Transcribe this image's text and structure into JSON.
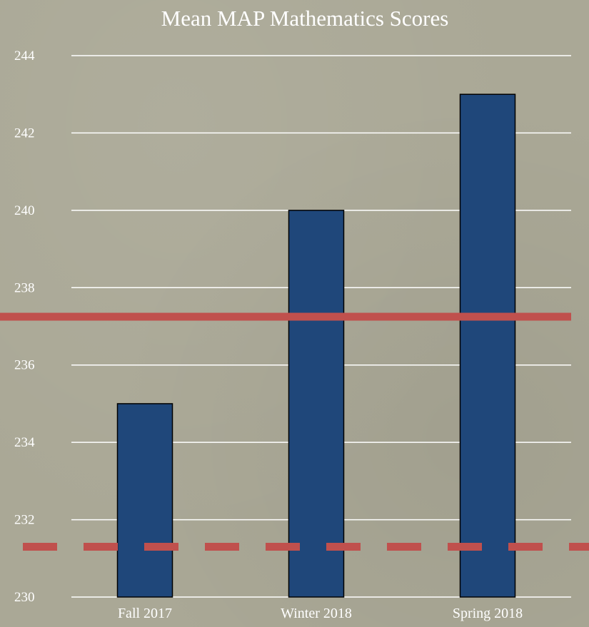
{
  "chart_data": {
    "type": "bar",
    "title": "Mean MAP Mathematics Scores",
    "categories": [
      "Fall 2017",
      "Winter 2018",
      "Spring 2018"
    ],
    "values": [
      235,
      240,
      243
    ],
    "ylim": [
      230,
      244
    ],
    "yticks": [
      230,
      232,
      234,
      236,
      238,
      240,
      242,
      244
    ],
    "grid": true,
    "reference_lines": [
      {
        "style": "solid",
        "value": 237.25
      },
      {
        "style": "dashed",
        "value": 231.3
      }
    ]
  },
  "colors": {
    "bar_fill": "#1f477a",
    "bar_stroke": "#000000",
    "grid": "#ffffff",
    "reference_line": "#c0504d",
    "text": "#ffffff"
  }
}
